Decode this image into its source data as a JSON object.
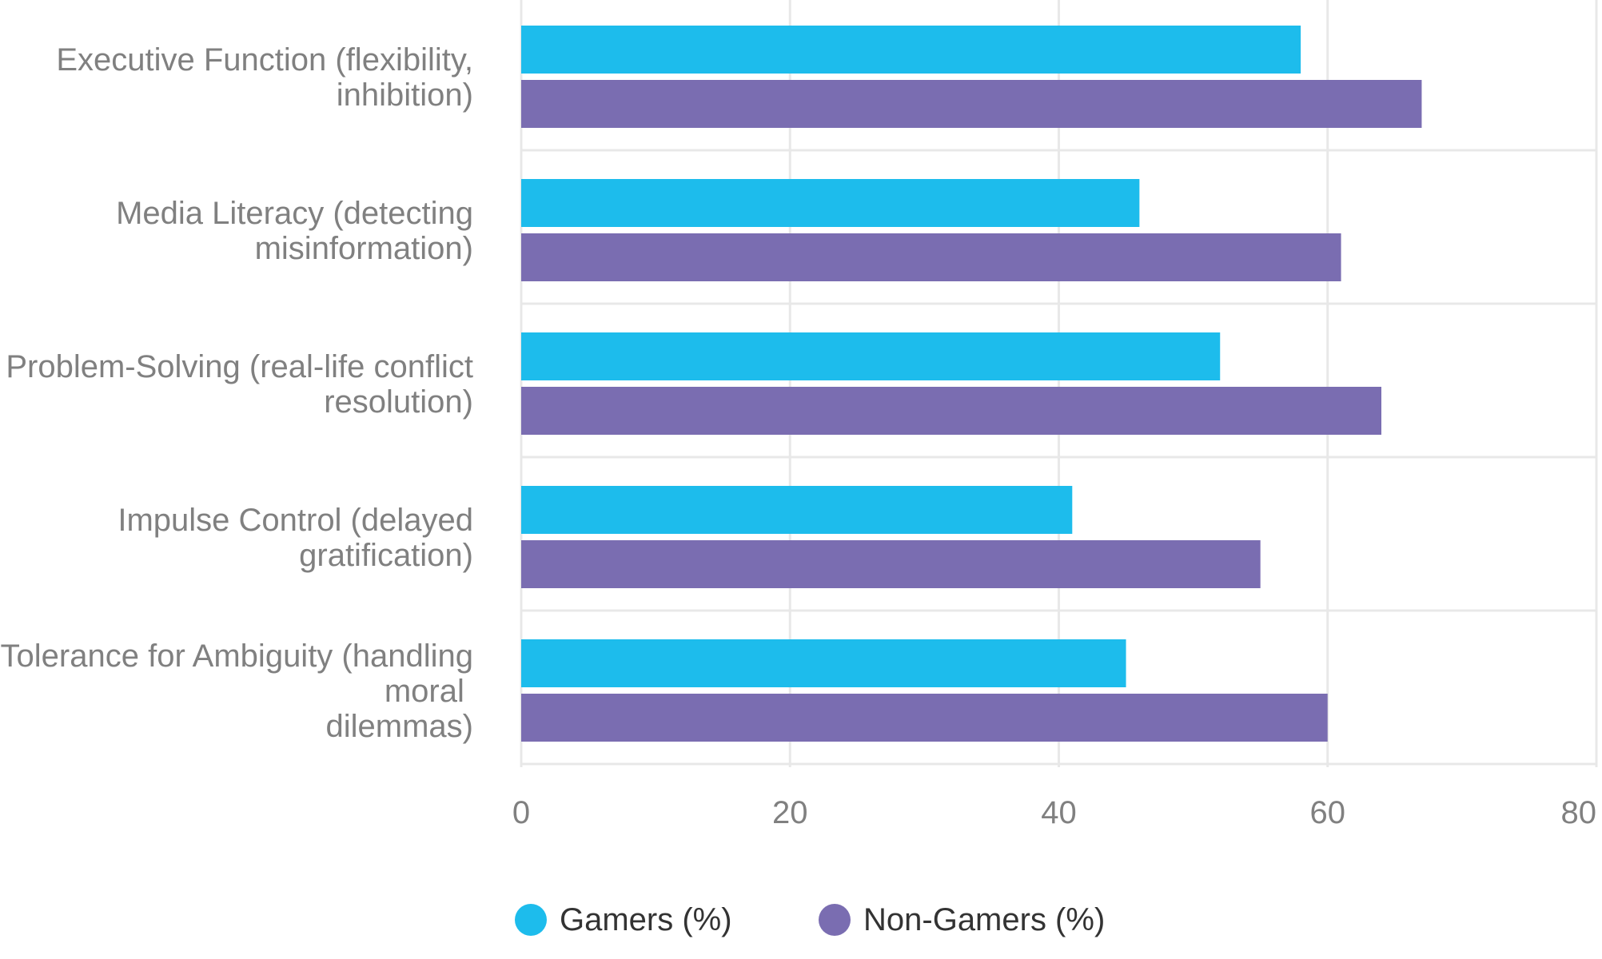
{
  "chart_data": {
    "type": "bar",
    "orientation": "horizontal",
    "categories": [
      [
        "Executive Function (flexibility,",
        "inhibition)"
      ],
      [
        "Media Literacy (detecting",
        "misinformation)"
      ],
      [
        "Problem-Solving (real-life conflict",
        "resolution)"
      ],
      [
        "Impulse Control (delayed",
        "gratification)"
      ],
      [
        "Tolerance for Ambiguity (handling",
        "moral ",
        "dilemmas)"
      ]
    ],
    "series": [
      {
        "name": "Gamers (%)",
        "color": "#1dbcec",
        "values": [
          58,
          46,
          52,
          41,
          45
        ]
      },
      {
        "name": "Non-Gamers (%)",
        "color": "#7a6db1",
        "values": [
          67,
          61,
          64,
          55,
          60
        ]
      }
    ],
    "xlim": [
      0,
      80
    ],
    "xticks": [
      "0",
      "20",
      "40",
      "60",
      "80"
    ],
    "tick_values": [
      0,
      20,
      40,
      60,
      80
    ],
    "grid": true,
    "legend_position": "bottom-center"
  }
}
